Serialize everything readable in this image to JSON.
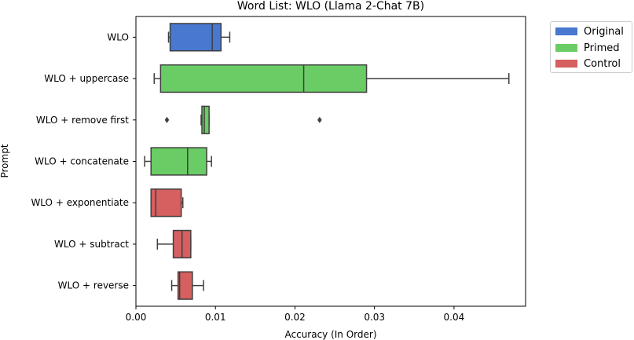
{
  "chart_data": {
    "type": "boxplot",
    "orientation": "horizontal",
    "title": "Word List: WLO (Llama 2-Chat 7B)",
    "xlabel": "Accuracy (In Order)",
    "ylabel": "Prompt",
    "xlim": [
      0.0,
      0.049
    ],
    "xticks": [
      "0.00",
      "0.01",
      "0.02",
      "0.03",
      "0.04"
    ],
    "xtick_values": [
      0.0,
      0.01,
      0.02,
      0.03,
      0.04
    ],
    "grid": false,
    "legend_placement": "outside-top-right",
    "legend": [
      {
        "name": "Original",
        "color": "#4878d0"
      },
      {
        "name": "Primed",
        "color": "#6acc64"
      },
      {
        "name": "Control",
        "color": "#d65f5f"
      }
    ],
    "categories": [
      "WLO",
      "WLO + uppercase",
      "WLO + remove first",
      "WLO + concatenate",
      "WLO + exponentiate",
      "WLO + subtract",
      "WLO + reverse"
    ],
    "boxes": [
      {
        "category": "WLO",
        "group": "Original",
        "whisker_low": 0.0041,
        "q1": 0.0043,
        "median": 0.0096,
        "q3": 0.0107,
        "whisker_high": 0.0118,
        "outliers": []
      },
      {
        "category": "WLO + uppercase",
        "group": "Primed",
        "whisker_low": 0.0023,
        "q1": 0.0031,
        "median": 0.0211,
        "q3": 0.029,
        "whisker_high": 0.0469,
        "outliers": []
      },
      {
        "category": "WLO + remove first",
        "group": "Primed",
        "whisker_low": 0.0082,
        "q1": 0.0083,
        "median": 0.0086,
        "q3": 0.0092,
        "whisker_high": 0.0092,
        "outliers": [
          0.0039,
          0.0231
        ]
      },
      {
        "category": "WLO + concatenate",
        "group": "Primed",
        "whisker_low": 0.0011,
        "q1": 0.0019,
        "median": 0.0065,
        "q3": 0.0089,
        "whisker_high": 0.0095,
        "outliers": []
      },
      {
        "category": "WLO + exponentiate",
        "group": "Control",
        "whisker_low": 0.0019,
        "q1": 0.0019,
        "median": 0.0025,
        "q3": 0.0057,
        "whisker_high": 0.0059,
        "outliers": []
      },
      {
        "category": "WLO + subtract",
        "group": "Control",
        "whisker_low": 0.0027,
        "q1": 0.0047,
        "median": 0.0058,
        "q3": 0.0069,
        "whisker_high": 0.0069,
        "outliers": []
      },
      {
        "category": "WLO + reverse",
        "group": "Control",
        "whisker_low": 0.0045,
        "q1": 0.0053,
        "median": 0.0055,
        "q3": 0.0071,
        "whisker_high": 0.0085,
        "outliers": []
      }
    ]
  }
}
